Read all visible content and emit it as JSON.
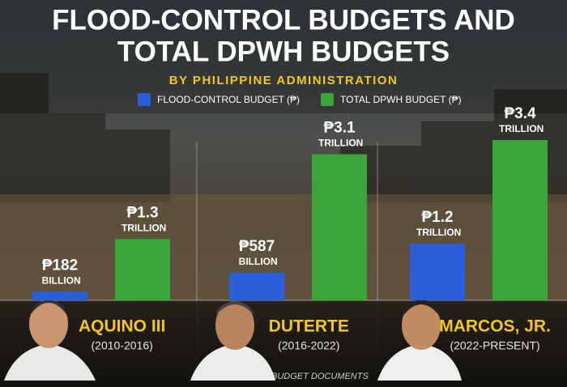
{
  "chart_data": {
    "type": "bar",
    "title": [
      "FLOOD-CONTROL BUDGETS AND",
      "TOTAL DPWH BUDGETS"
    ],
    "subtitle": "BY PHILIPPINE ADMINISTRATION",
    "categories": [
      "AQUINO III",
      "DUTERTE",
      "MARCOS, JR."
    ],
    "periods": [
      "(2010-2016)",
      "(2016-2022)",
      "(2022-PRESENT)"
    ],
    "series": [
      {
        "name": "FLOOD-CONTROL BUDGET (₱)",
        "color": "#2b5fd9",
        "values": [
          182,
          587,
          1200
        ],
        "value_labels": [
          "₱182 BILLION",
          "₱587 BILLION",
          "₱1.2 TRILLION"
        ]
      },
      {
        "name": "TOTAL DPWH BUDGET (₱)",
        "color": "#3aa53a",
        "values": [
          1300,
          3100,
          3400
        ],
        "value_labels": [
          "₱1.3 TRILLION",
          "₱3.1 TRILLION",
          "₱3.4 TRILLION"
        ]
      }
    ],
    "source": "SOURCE: DPWH BUDGET DOCUMENTS"
  }
}
